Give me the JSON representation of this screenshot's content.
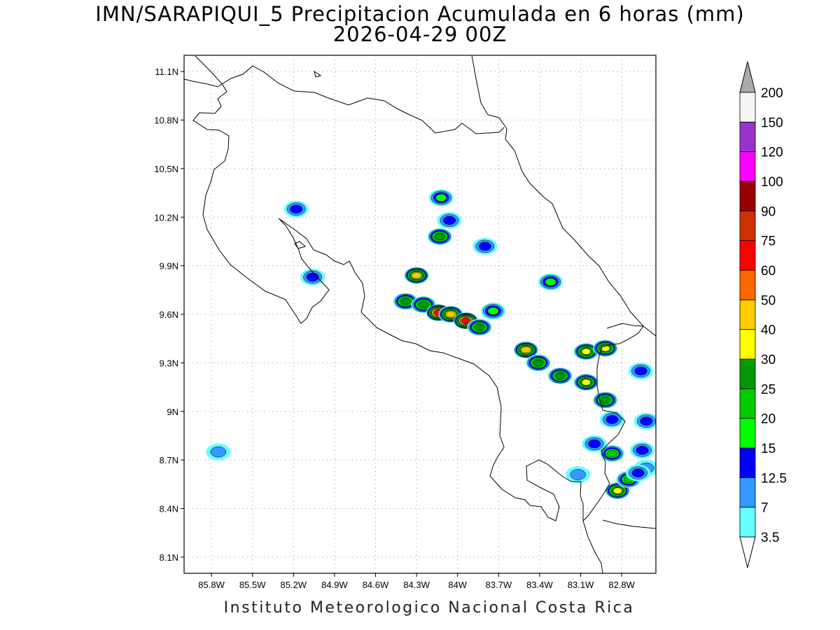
{
  "header": {
    "title": "IMN/SARAPIQUI_5 Precipitacion Acumulada en 6 horas (mm)",
    "valid_time": "2026-04-29 00Z"
  },
  "footer": {
    "credit": "Instituto Meteorologico Nacional Costa Rica"
  },
  "map": {
    "lon_range": [
      -86.0,
      -82.55
    ],
    "lat_range": [
      8.0,
      11.2
    ],
    "lon_ticks": [
      {
        "value": -85.8,
        "label": "85.8W"
      },
      {
        "value": -85.5,
        "label": "85.5W"
      },
      {
        "value": -85.2,
        "label": "85.2W"
      },
      {
        "value": -84.9,
        "label": "84.9W"
      },
      {
        "value": -84.6,
        "label": "84.6W"
      },
      {
        "value": -84.3,
        "label": "84.3W"
      },
      {
        "value": -84.0,
        "label": "84W"
      },
      {
        "value": -83.7,
        "label": "83.7W"
      },
      {
        "value": -83.4,
        "label": "83.4W"
      },
      {
        "value": -83.1,
        "label": "83.1W"
      },
      {
        "value": -82.8,
        "label": "82.8W"
      }
    ],
    "lat_ticks": [
      {
        "value": 11.1,
        "label": "11.1N"
      },
      {
        "value": 10.8,
        "label": "10.8N"
      },
      {
        "value": 10.5,
        "label": "10.5N"
      },
      {
        "value": 10.2,
        "label": "10.2N"
      },
      {
        "value": 9.9,
        "label": "9.9N"
      },
      {
        "value": 9.6,
        "label": "9.6N"
      },
      {
        "value": 9.3,
        "label": "9.3N"
      },
      {
        "value": 9.0,
        "label": "9N"
      },
      {
        "value": 8.7,
        "label": "8.7N"
      },
      {
        "value": 8.4,
        "label": "8.4N"
      },
      {
        "value": 8.1,
        "label": "8.1N"
      }
    ],
    "grid": "dotted",
    "colorbar": {
      "placement": "right",
      "levels": [
        "3.5",
        "7",
        "12.5",
        "15",
        "20",
        "25",
        "30",
        "40",
        "50",
        "60",
        "75",
        "90",
        "100",
        "120",
        "150",
        "200"
      ],
      "colors": [
        "#66ffff",
        "#3399ff",
        "#0000ff",
        "#00ff00",
        "#00cc00",
        "#009900",
        "#ffff00",
        "#ffcc00",
        "#ff6600",
        "#ff0000",
        "#cc3300",
        "#990000",
        "#ff00ff",
        "#9933cc",
        "#f5f5f5"
      ],
      "over_color": "#aaaaaa"
    },
    "rain_cells": [
      {
        "lon": -84.38,
        "lat": 9.68,
        "value": 25
      },
      {
        "lon": -84.25,
        "lat": 9.66,
        "value": 25
      },
      {
        "lon": -84.14,
        "lat": 9.61,
        "value": 60
      },
      {
        "lon": -84.05,
        "lat": 9.6,
        "value": 40
      },
      {
        "lon": -83.94,
        "lat": 9.56,
        "value": 60
      },
      {
        "lon": -83.84,
        "lat": 9.52,
        "value": 25
      },
      {
        "lon": -83.74,
        "lat": 9.62,
        "value": 15
      },
      {
        "lon": -84.3,
        "lat": 9.84,
        "value": 40
      },
      {
        "lon": -84.13,
        "lat": 10.08,
        "value": 25
      },
      {
        "lon": -83.5,
        "lat": 9.38,
        "value": 40
      },
      {
        "lon": -83.41,
        "lat": 9.3,
        "value": 25
      },
      {
        "lon": -83.06,
        "lat": 9.37,
        "value": 30
      },
      {
        "lon": -82.92,
        "lat": 9.39,
        "value": 30
      },
      {
        "lon": -83.25,
        "lat": 9.22,
        "value": 25
      },
      {
        "lon": -83.06,
        "lat": 9.18,
        "value": 30
      },
      {
        "lon": -82.92,
        "lat": 9.07,
        "value": 25
      },
      {
        "lon": -82.83,
        "lat": 8.51,
        "value": 30
      },
      {
        "lon": -82.75,
        "lat": 8.58,
        "value": 20
      },
      {
        "lon": -83.32,
        "lat": 9.8,
        "value": 15
      },
      {
        "lon": -84.12,
        "lat": 10.32,
        "value": 15
      },
      {
        "lon": -84.06,
        "lat": 10.18,
        "value": 12.5
      },
      {
        "lon": -85.18,
        "lat": 10.25,
        "value": 12.5
      },
      {
        "lon": -85.06,
        "lat": 9.83,
        "value": 12.5
      },
      {
        "lon": -85.75,
        "lat": 8.75,
        "value": 7
      },
      {
        "lon": -82.66,
        "lat": 9.25,
        "value": 12.5
      },
      {
        "lon": -82.62,
        "lat": 8.94,
        "value": 12.5
      },
      {
        "lon": -82.87,
        "lat": 8.95,
        "value": 12.5
      },
      {
        "lon": -83.0,
        "lat": 8.8,
        "value": 12.5
      },
      {
        "lon": -82.87,
        "lat": 8.74,
        "value": 20
      },
      {
        "lon": -83.12,
        "lat": 8.61,
        "value": 7
      },
      {
        "lon": -82.65,
        "lat": 8.76,
        "value": 12.5
      },
      {
        "lon": -82.62,
        "lat": 8.65,
        "value": 7
      },
      {
        "lon": -83.8,
        "lat": 10.02,
        "value": 12.5
      },
      {
        "lon": -82.68,
        "lat": 8.62,
        "value": 12.5
      }
    ]
  }
}
